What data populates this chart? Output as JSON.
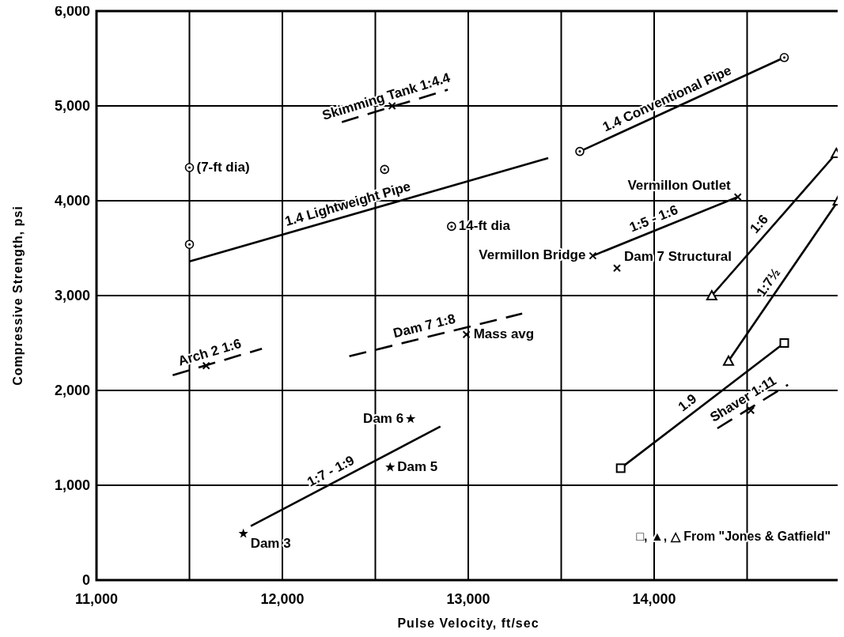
{
  "chart_data": {
    "type": "line",
    "xlabel": "Pulse Velocity, ft/sec",
    "ylabel": "Compressive Strength, psi",
    "xlim": [
      11000,
      15000
    ],
    "xticks": [
      {
        "value": 11000,
        "label": "11,000"
      },
      {
        "value": 11500,
        "label": null
      },
      {
        "value": 12000,
        "label": "12,000"
      },
      {
        "value": 12500,
        "label": null
      },
      {
        "value": 13000,
        "label": "13,000"
      },
      {
        "value": 13500,
        "label": null
      },
      {
        "value": 14000,
        "label": "14,000"
      },
      {
        "value": 14500,
        "label": null
      },
      {
        "value": 15000,
        "label": null
      }
    ],
    "ylim": [
      0,
      6000
    ],
    "yticks": [
      0,
      {
        "value": 1000,
        "label": "1,000"
      },
      {
        "value": 2000,
        "label": "2,000"
      },
      {
        "value": 3000,
        "label": "3,000"
      },
      {
        "value": 4000,
        "label": "4,000"
      },
      {
        "value": 5000,
        "label": "5,000"
      },
      {
        "value": 6000,
        "label": "6,000"
      }
    ],
    "grid": true,
    "series": [
      {
        "name": "1.4 Lightweight Pipe",
        "color": "#000000",
        "marker": "none",
        "line_style": "solid",
        "x": [
          11500,
          13430
        ],
        "values": [
          3360,
          4450
        ]
      },
      {
        "type": "scatter",
        "color": "#000000",
        "marker": "circle",
        "x": [
          11500,
          11500,
          12550,
          12910
        ],
        "values": [
          4350,
          3540,
          4330,
          3730
        ]
      },
      {
        "name": "1.4 Conventional Pipe",
        "color": "#000000",
        "marker": "circle",
        "line_style": "solid",
        "x": [
          13600,
          14700
        ],
        "values": [
          4520,
          5510
        ]
      },
      {
        "name": "1:5 - 1:6",
        "color": "#000000",
        "marker": "cross",
        "line_style": "solid",
        "x": [
          13670,
          14450
        ],
        "values": [
          3420,
          4040
        ]
      },
      {
        "name": "1:7 - 1:9",
        "color": "#000000",
        "marker": "none",
        "line_style": "solid",
        "x": [
          11830,
          12850
        ],
        "values": [
          570,
          1620
        ]
      },
      {
        "type": "scatter",
        "color": "#000000",
        "marker": "star",
        "x": [
          11790,
          12580,
          12690
        ],
        "values": [
          490,
          1190,
          1700
        ]
      },
      {
        "name": "1.9",
        "color": "#000000",
        "marker": "square",
        "line_style": "solid",
        "x": [
          13820,
          14700
        ],
        "values": [
          1180,
          2500
        ]
      },
      {
        "name": "1:6",
        "color": "#000000",
        "marker": "triangle",
        "line_style": "solid",
        "x": [
          14310,
          14980
        ],
        "values": [
          3000,
          4500
        ]
      },
      {
        "name": "1:7½",
        "color": "#000000",
        "marker": "triangle",
        "line_style": "solid",
        "x": [
          14400,
          14990
        ],
        "values": [
          2310,
          4000
        ]
      },
      {
        "name": "Skimming Tank 1:4.4",
        "color": "#000000",
        "marker": "none",
        "line_style": "dashed",
        "x": [
          12320,
          12890
        ],
        "values": [
          4830,
          5170
        ]
      },
      {
        "name": "Arch 2 1:6",
        "color": "#000000",
        "marker": "none",
        "line_style": "dashed",
        "x": [
          11410,
          11890
        ],
        "values": [
          2160,
          2440
        ]
      },
      {
        "name": "Dam 7 1:8",
        "color": "#000000",
        "marker": "none",
        "line_style": "dashed",
        "x": [
          12360,
          13290
        ],
        "values": [
          2360,
          2810
        ]
      },
      {
        "name": "Shaver 1:11",
        "color": "#000000",
        "marker": "none",
        "line_style": "dashed",
        "x": [
          14340,
          14720
        ],
        "values": [
          1600,
          2060
        ]
      },
      {
        "type": "scatter",
        "color": "#000000",
        "marker": "cross",
        "x": [
          12590,
          11590,
          12990,
          14520,
          13800
        ],
        "values": [
          5000,
          2260,
          2590,
          1790,
          3290
        ]
      }
    ],
    "annotations": [
      {
        "text": "(7-ft dia)",
        "x": 11500,
        "y": 4350
      },
      {
        "text": "14-ft dia",
        "x": 12910,
        "y": 3730
      },
      {
        "text": "Dam 3",
        "x": 11790,
        "y": 490
      },
      {
        "text": "Dam 5",
        "x": 12580,
        "y": 1190
      },
      {
        "text": "Dam 6",
        "x": 12690,
        "y": 1700
      },
      {
        "text": "Vermillon Bridge",
        "x": 13670,
        "y": 3420
      },
      {
        "text": "Vermillon Outlet",
        "x": 14450,
        "y": 4040
      },
      {
        "text": "Dam 7 Structural",
        "x": 13800,
        "y": 3290
      },
      {
        "text": "Mass avg",
        "x": 12990,
        "y": 2590
      },
      "□, ▲, △ From \"Jones & Gatfield\""
    ]
  }
}
